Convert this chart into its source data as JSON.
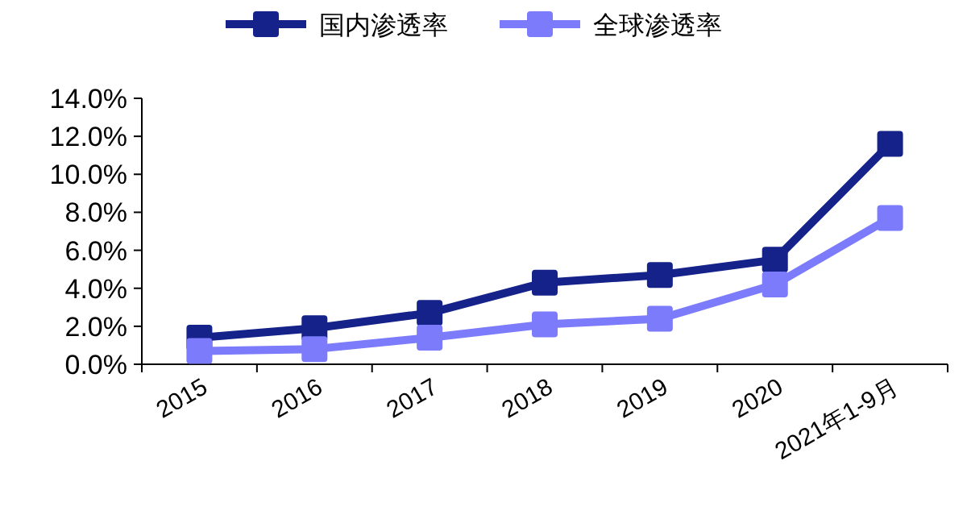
{
  "chart_data": {
    "type": "line",
    "categories": [
      "2015",
      "2016",
      "2017",
      "2018",
      "2019",
      "2020",
      "2021年1-9月"
    ],
    "series": [
      {
        "name": "国内渗透率",
        "color": "#14228a",
        "values": [
          1.4,
          1.9,
          2.7,
          4.3,
          4.7,
          5.5,
          11.6
        ]
      },
      {
        "name": "全球渗透率",
        "color": "#7b7bfb",
        "values": [
          0.7,
          0.8,
          1.4,
          2.1,
          2.4,
          4.2,
          7.7
        ]
      }
    ],
    "ylim": [
      0,
      14
    ],
    "yticks": [
      {
        "value": 0,
        "label": "0.0%"
      },
      {
        "value": 2,
        "label": "2.0%"
      },
      {
        "value": 4,
        "label": "4.0%"
      },
      {
        "value": 6,
        "label": "6.0%"
      },
      {
        "value": 8,
        "label": "8.0%"
      },
      {
        "value": 10,
        "label": "10.0%"
      },
      {
        "value": 12,
        "label": "12.0%"
      },
      {
        "value": 14,
        "label": "14.0%"
      }
    ],
    "legend": "top",
    "marker": "square",
    "line_style": "solid",
    "grid": false
  }
}
